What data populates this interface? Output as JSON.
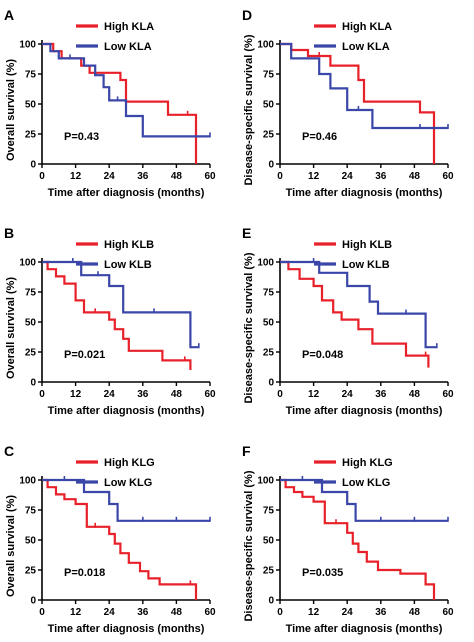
{
  "colors": {
    "high": "#e8202a",
    "low": "#3a46a8",
    "axis": "#000000"
  },
  "chart_data": [
    {
      "panel": "A",
      "type": "line",
      "xlabel": "Time after diagnosis (months)",
      "ylabel": "Overall survival (%)",
      "xlim": [
        0,
        60
      ],
      "ylim": [
        0,
        100
      ],
      "xticks": [
        "0",
        "12",
        "24",
        "36",
        "48",
        "60"
      ],
      "yticks": [
        "0",
        "25",
        "50",
        "75",
        "100"
      ],
      "pvalue": "P=0.43",
      "series": [
        {
          "name": "High KLA",
          "color": "high",
          "x": [
            0,
            2,
            4,
            7,
            14,
            17,
            24,
            28,
            30,
            40,
            45,
            52,
            55,
            55
          ],
          "y": [
            100,
            100,
            94,
            88,
            82,
            76,
            76,
            70,
            52,
            52,
            41,
            41,
            35,
            0
          ],
          "censor_x": [
            52
          ]
        },
        {
          "name": "Low KLA",
          "color": "low",
          "x": [
            0,
            3,
            6,
            10,
            15,
            19,
            22,
            24,
            27,
            30,
            36,
            60
          ],
          "y": [
            100,
            94,
            88,
            88,
            82,
            74,
            64,
            53,
            53,
            40,
            23,
            23
          ],
          "censor_x": [
            10,
            19,
            27,
            60
          ]
        }
      ]
    },
    {
      "panel": "D",
      "type": "line",
      "xlabel": "Time after diagnosis (months)",
      "ylabel": "Disease-specific survival (%)",
      "xlim": [
        0,
        60
      ],
      "ylim": [
        0,
        100
      ],
      "xticks": [
        "0",
        "12",
        "24",
        "36",
        "48",
        "60"
      ],
      "yticks": [
        "0",
        "25",
        "50",
        "75",
        "100"
      ],
      "pvalue": "P=0.46",
      "series": [
        {
          "name": "High KLA",
          "color": "high",
          "x": [
            0,
            4,
            10,
            14,
            18,
            24,
            28,
            30,
            45,
            50,
            55,
            55
          ],
          "y": [
            100,
            95,
            90,
            90,
            82,
            82,
            70,
            52,
            52,
            43,
            43,
            0
          ],
          "censor_x": [
            14,
            50
          ]
        },
        {
          "name": "Low KLA",
          "color": "low",
          "x": [
            0,
            4,
            14,
            18,
            24,
            33,
            60
          ],
          "y": [
            100,
            88,
            75,
            63,
            45,
            30,
            30
          ],
          "censor_x": [
            28,
            50,
            60
          ]
        }
      ]
    },
    {
      "panel": "B",
      "type": "line",
      "xlabel": "Time after diagnosis (months)",
      "ylabel": "Overall survival (%)",
      "xlim": [
        0,
        60
      ],
      "ylim": [
        0,
        100
      ],
      "xticks": [
        "0",
        "12",
        "24",
        "36",
        "48",
        "60"
      ],
      "yticks": [
        "0",
        "25",
        "50",
        "75",
        "100"
      ],
      "pvalue": "P=0.021",
      "series": [
        {
          "name": "High KLB",
          "color": "high",
          "x": [
            0,
            2,
            5,
            8,
            12,
            15,
            19,
            24,
            26,
            29,
            31,
            37,
            43,
            51,
            53
          ],
          "y": [
            100,
            94,
            88,
            82,
            68,
            58,
            58,
            52,
            44,
            36,
            26,
            26,
            18,
            18,
            10
          ],
          "censor_x": [
            19,
            51
          ]
        },
        {
          "name": "Low KLB",
          "color": "low",
          "x": [
            0,
            14,
            24,
            29,
            53,
            56
          ],
          "y": [
            100,
            89,
            80,
            58,
            29,
            29
          ],
          "censor_x": [
            11,
            20,
            40,
            56
          ]
        }
      ]
    },
    {
      "panel": "E",
      "type": "line",
      "xlabel": "Time after diagnosis (months)",
      "ylabel": "Disease-specific survival (%)",
      "xlim": [
        0,
        60
      ],
      "ylim": [
        0,
        100
      ],
      "xticks": [
        "0",
        "12",
        "24",
        "36",
        "48",
        "60"
      ],
      "yticks": [
        "0",
        "25",
        "50",
        "75",
        "100"
      ],
      "pvalue": "P=0.048",
      "series": [
        {
          "name": "High KLB",
          "color": "high",
          "x": [
            0,
            3,
            7,
            12,
            15,
            19,
            22,
            28,
            33,
            40,
            45,
            52,
            53
          ],
          "y": [
            100,
            94,
            86,
            80,
            68,
            58,
            52,
            44,
            32,
            32,
            22,
            22,
            12
          ],
          "censor_x": [
            28,
            52
          ]
        },
        {
          "name": "Low KLB",
          "color": "low",
          "x": [
            0,
            14,
            24,
            32,
            35,
            52,
            56
          ],
          "y": [
            100,
            91,
            80,
            67,
            57,
            29,
            29
          ],
          "censor_x": [
            12,
            32,
            45,
            56
          ]
        }
      ]
    },
    {
      "panel": "C",
      "type": "line",
      "xlabel": "Time after diagnosis (months)",
      "ylabel": "Overall survival (%)",
      "xlim": [
        0,
        60
      ],
      "ylim": [
        0,
        100
      ],
      "xticks": [
        "0",
        "12",
        "24",
        "36",
        "48",
        "60"
      ],
      "yticks": [
        "0",
        "25",
        "50",
        "75",
        "100"
      ],
      "pvalue": "P=0.018",
      "series": [
        {
          "name": "High KLG",
          "color": "high",
          "x": [
            0,
            2,
            5,
            8,
            12,
            16,
            19,
            24,
            26,
            28,
            31,
            35,
            38,
            42,
            53,
            55
          ],
          "y": [
            100,
            94,
            88,
            84,
            80,
            61,
            61,
            55,
            47,
            39,
            31,
            24,
            18,
            13,
            13,
            0
          ],
          "censor_x": [
            19,
            53
          ]
        },
        {
          "name": "Low KLG",
          "color": "low",
          "x": [
            0,
            15,
            24,
            27,
            60
          ],
          "y": [
            100,
            90,
            80,
            66,
            66
          ],
          "censor_x": [
            8,
            24,
            36,
            48,
            60
          ]
        }
      ]
    },
    {
      "panel": "F",
      "type": "line",
      "xlabel": "Time after diagnosis (months)",
      "ylabel": "Disease-specific survival (%)",
      "xlim": [
        0,
        60
      ],
      "ylim": [
        0,
        100
      ],
      "xticks": [
        "0",
        "12",
        "24",
        "36",
        "48",
        "60"
      ],
      "yticks": [
        "0",
        "25",
        "50",
        "75",
        "100"
      ],
      "pvalue": "P=0.035",
      "series": [
        {
          "name": "High KLG",
          "color": "high",
          "x": [
            0,
            2,
            5,
            8,
            12,
            16,
            20,
            24,
            26,
            28,
            31,
            35,
            39,
            43,
            52,
            55,
            55
          ],
          "y": [
            100,
            94,
            90,
            86,
            82,
            64,
            64,
            56,
            47,
            40,
            32,
            25,
            25,
            22,
            13,
            13,
            0
          ],
          "censor_x": [
            20,
            52
          ]
        },
        {
          "name": "Low KLG",
          "color": "low",
          "x": [
            0,
            15,
            24,
            27,
            60
          ],
          "y": [
            100,
            90,
            80,
            66,
            66
          ],
          "censor_x": [
            8,
            24,
            36,
            48,
            60
          ]
        }
      ]
    }
  ]
}
